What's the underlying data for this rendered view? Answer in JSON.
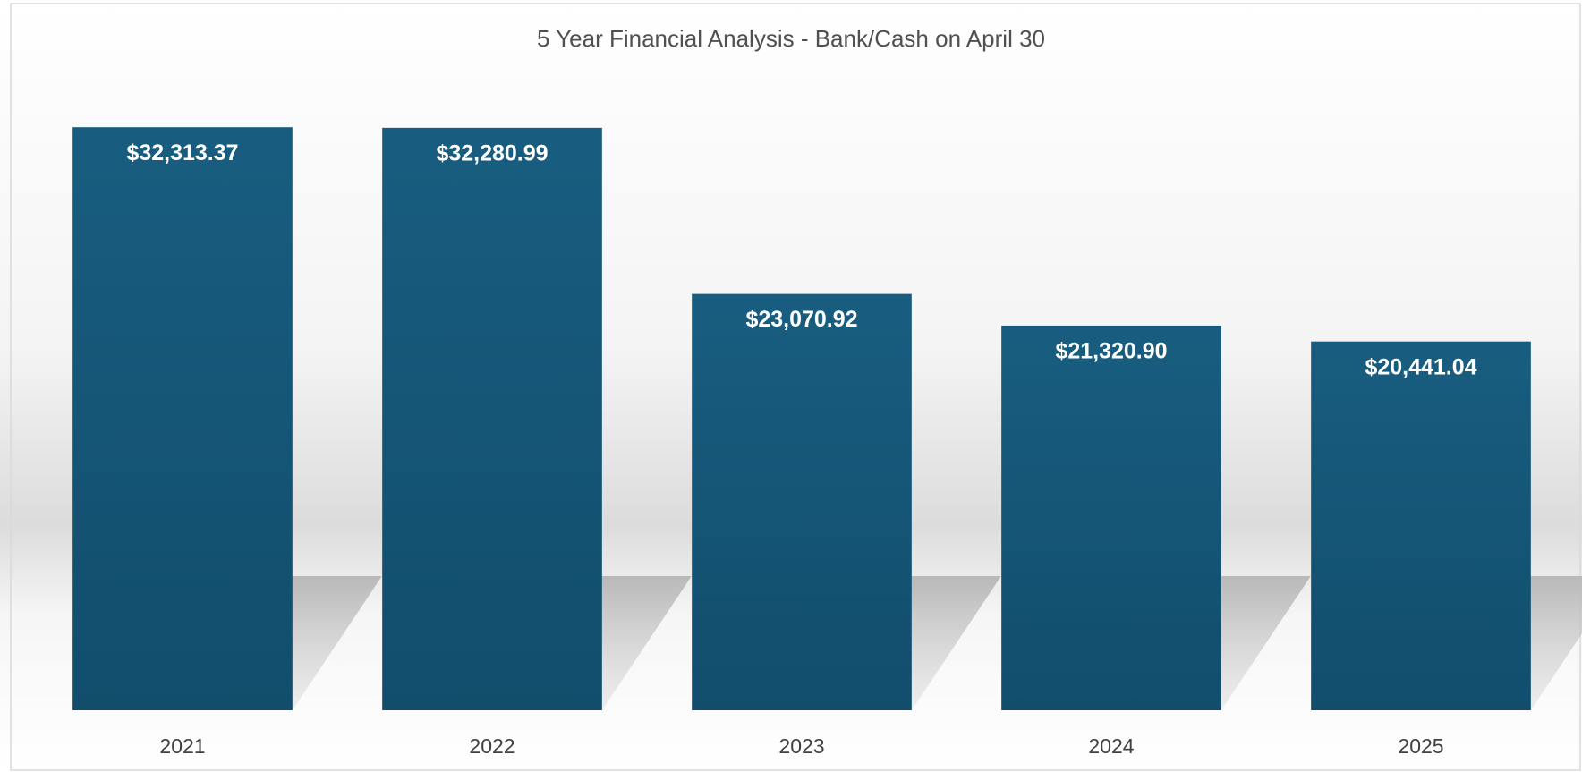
{
  "chart_data": {
    "type": "bar",
    "title": "5 Year Financial Analysis - Bank/Cash on April 30",
    "categories": [
      "2021",
      "2022",
      "2023",
      "2024",
      "2025"
    ],
    "values": [
      32313.37,
      32280.99,
      23070.92,
      21320.9,
      20441.04
    ],
    "value_labels": [
      "$32,313.37",
      "$32,280.99",
      "$23,070.92",
      "$21,320.90",
      "$20,441.04"
    ],
    "color": "#175b7e",
    "ylim": [
      0,
      35000
    ]
  }
}
